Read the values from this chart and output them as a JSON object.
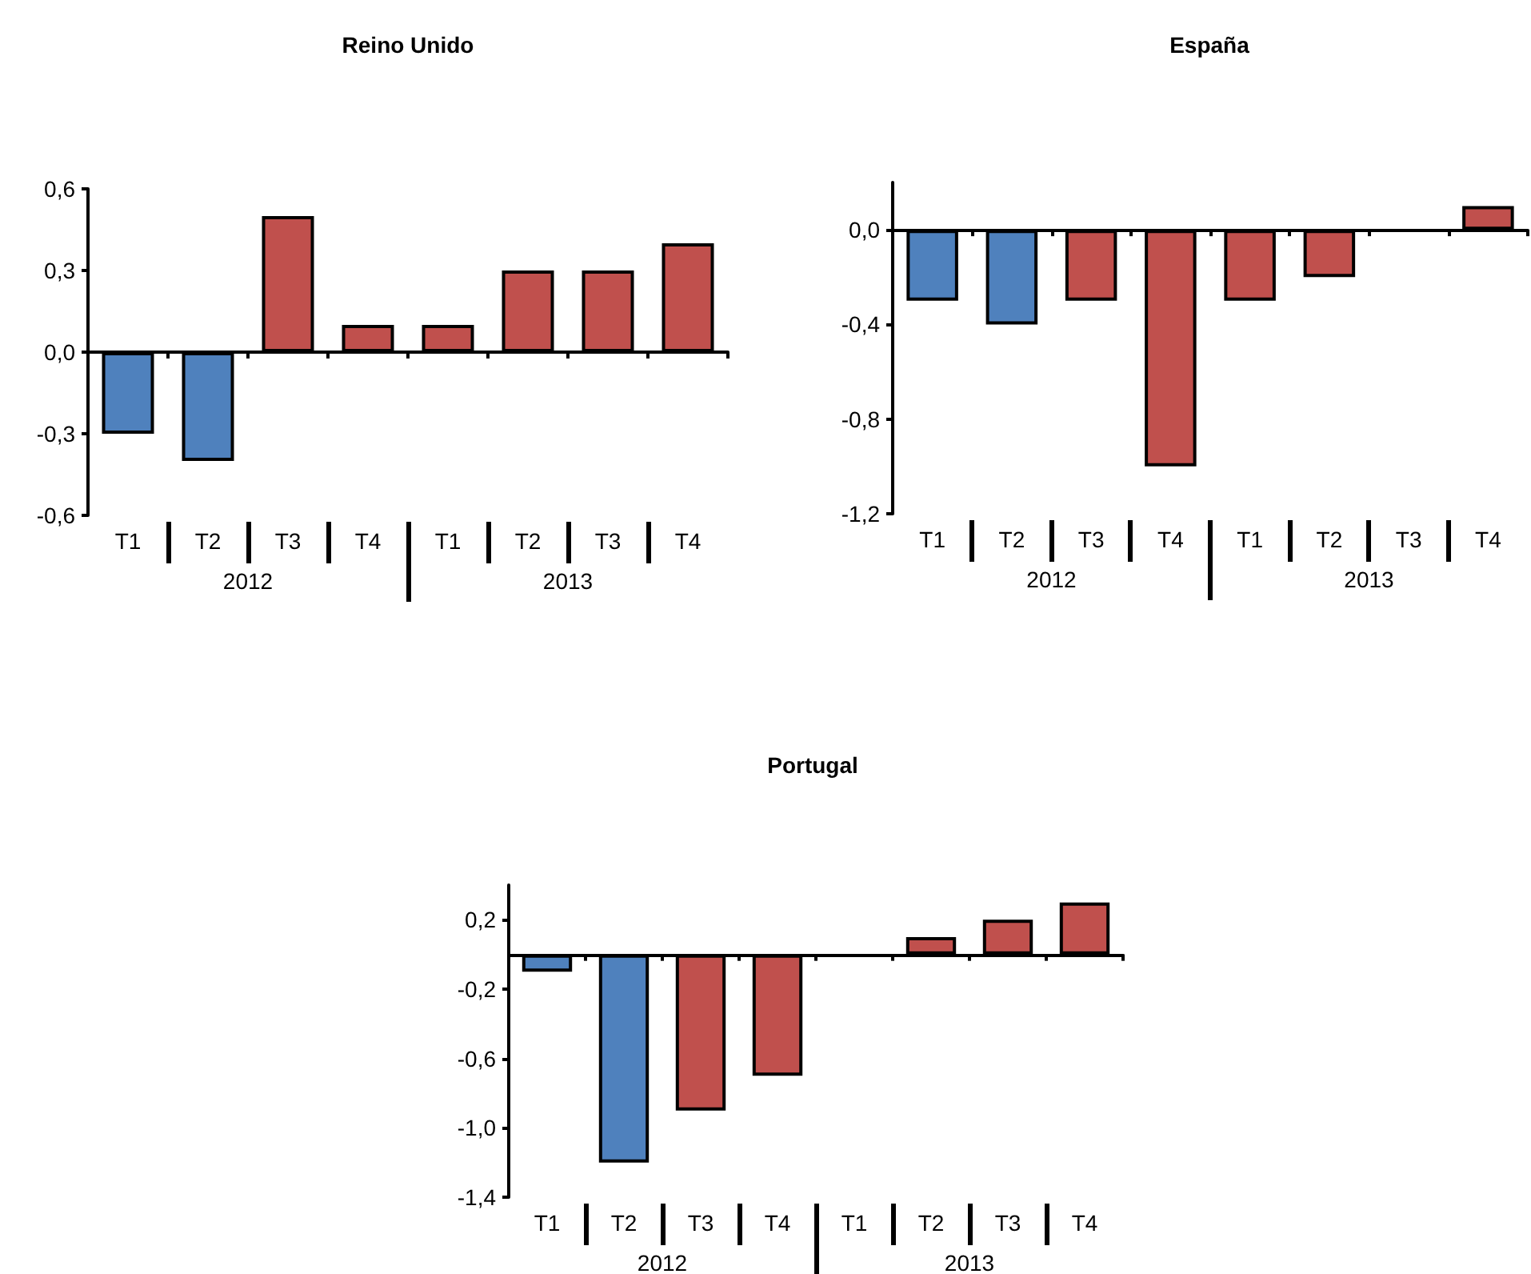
{
  "chart_data": [
    {
      "type": "bar",
      "title": "Reino Unido",
      "categories": [
        "T1",
        "T2",
        "T3",
        "T4",
        "T1",
        "T2",
        "T3",
        "T4"
      ],
      "annotations": [
        "2012",
        "2013"
      ],
      "values": [
        -0.3,
        -0.4,
        0.5,
        0.1,
        0.1,
        0.3,
        0.3,
        0.4
      ],
      "colors": [
        "#4f81bd",
        "#4f81bd",
        "#c0504d",
        "#c0504d",
        "#c0504d",
        "#c0504d",
        "#c0504d",
        "#c0504d"
      ],
      "ylim": [
        -0.6,
        0.6
      ],
      "yticks": [
        {
          "value": -0.6,
          "label": "-0,6"
        },
        {
          "value": -0.3,
          "label": "-0,3"
        },
        {
          "value": 0,
          "label": "0,0"
        },
        {
          "value": 0.3,
          "label": "0,3"
        },
        {
          "value": 0.6,
          "label": "0,6"
        }
      ]
    },
    {
      "type": "bar",
      "title": "España",
      "categories": [
        "T1",
        "T2",
        "T3",
        "T4",
        "T1",
        "T2",
        "T3",
        "T4"
      ],
      "annotations": [
        "2012",
        "2013"
      ],
      "values": [
        -0.3,
        -0.4,
        -0.3,
        -1.0,
        -0.3,
        -0.2,
        null,
        0.1
      ],
      "colors": [
        "#4f81bd",
        "#4f81bd",
        "#c0504d",
        "#c0504d",
        "#c0504d",
        "#c0504d",
        "#c0504d",
        "#c0504d"
      ],
      "ylim": [
        -1.2,
        0.2
      ],
      "yticks": [
        {
          "value": -1.2,
          "label": "-1,2"
        },
        {
          "value": -0.8,
          "label": "-0,8"
        },
        {
          "value": -0.4,
          "label": "-0,4"
        },
        {
          "value": 0,
          "label": "0,0"
        }
      ]
    },
    {
      "type": "bar",
      "title": "Portugal",
      "categories": [
        "T1",
        "T2",
        "T3",
        "T4",
        "T1",
        "T2",
        "T3",
        "T4"
      ],
      "annotations": [
        "2012",
        "2013"
      ],
      "values": [
        -0.1,
        -1.2,
        -0.9,
        -0.7,
        null,
        0.1,
        0.2,
        0.3
      ],
      "colors": [
        "#4f81bd",
        "#4f81bd",
        "#c0504d",
        "#c0504d",
        "#c0504d",
        "#c0504d",
        "#c0504d",
        "#c0504d"
      ],
      "ylim": [
        -1.4,
        0.4
      ],
      "yticks": [
        {
          "value": -1.4,
          "label": "-1,4"
        },
        {
          "value": -1.0,
          "label": "-1,0"
        },
        {
          "value": -0.6,
          "label": "-0,6"
        },
        {
          "value": -0.2,
          "label": "-0,2"
        },
        {
          "value": 0.2,
          "label": "0,2"
        }
      ]
    }
  ]
}
